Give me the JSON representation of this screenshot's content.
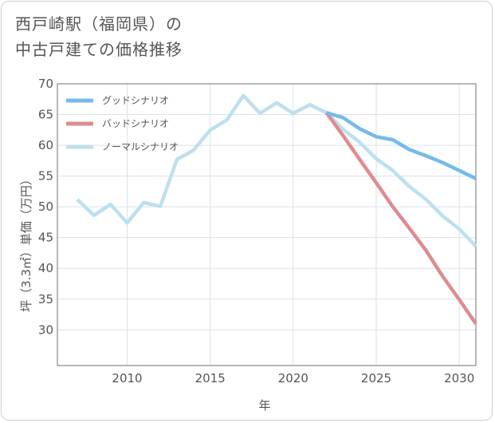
{
  "title_line1": "西戸崎駅（福岡県）の",
  "title_line2": "中古戸建ての価格推移",
  "chart_data": {
    "type": "line",
    "xlabel": "年",
    "ylabel": "坪（3.3㎡）単価（万円）",
    "xlim": [
      2005.8,
      2031
    ],
    "ylim": [
      24.2,
      70
    ],
    "x_ticks": [
      2010,
      2015,
      2020,
      2025,
      2030
    ],
    "y_ticks": [
      30,
      35,
      40,
      45,
      50,
      55,
      60,
      65,
      70
    ],
    "grid": true,
    "legend_position": "top-left",
    "series": [
      {
        "name": "グッドシナリオ",
        "color": "#74bbec",
        "x": [
          2022,
          2023,
          2024,
          2025,
          2026,
          2027,
          2028,
          2029,
          2030,
          2031
        ],
        "y": [
          65.3,
          64.5,
          62.7,
          61.4,
          60.9,
          59.3,
          58.3,
          57.2,
          55.9,
          54.6
        ]
      },
      {
        "name": "バッドシナリオ",
        "color": "#de8c91",
        "x": [
          2022,
          2023,
          2024,
          2025,
          2026,
          2027,
          2028,
          2029,
          2030,
          2031
        ],
        "y": [
          65.3,
          61.6,
          57.7,
          53.9,
          50.0,
          46.5,
          42.9,
          38.7,
          34.9,
          31.0
        ]
      },
      {
        "name": "ノーマルシナリオ",
        "color": "#bde0ee",
        "x": [
          2007,
          2008,
          2009,
          2010,
          2011,
          2012,
          2013,
          2014,
          2015,
          2016,
          2017,
          2018,
          2019,
          2020,
          2021,
          2022,
          2023,
          2024,
          2025,
          2026,
          2027,
          2028,
          2029,
          2030,
          2031
        ],
        "y": [
          51.2,
          48.6,
          50.4,
          47.4,
          50.7,
          50.1,
          57.7,
          59.2,
          62.5,
          64.1,
          68.1,
          65.2,
          66.9,
          65.2,
          66.6,
          65.3,
          62.6,
          60.5,
          57.8,
          55.9,
          53.3,
          51.2,
          48.5,
          46.4,
          43.6
        ]
      }
    ]
  }
}
